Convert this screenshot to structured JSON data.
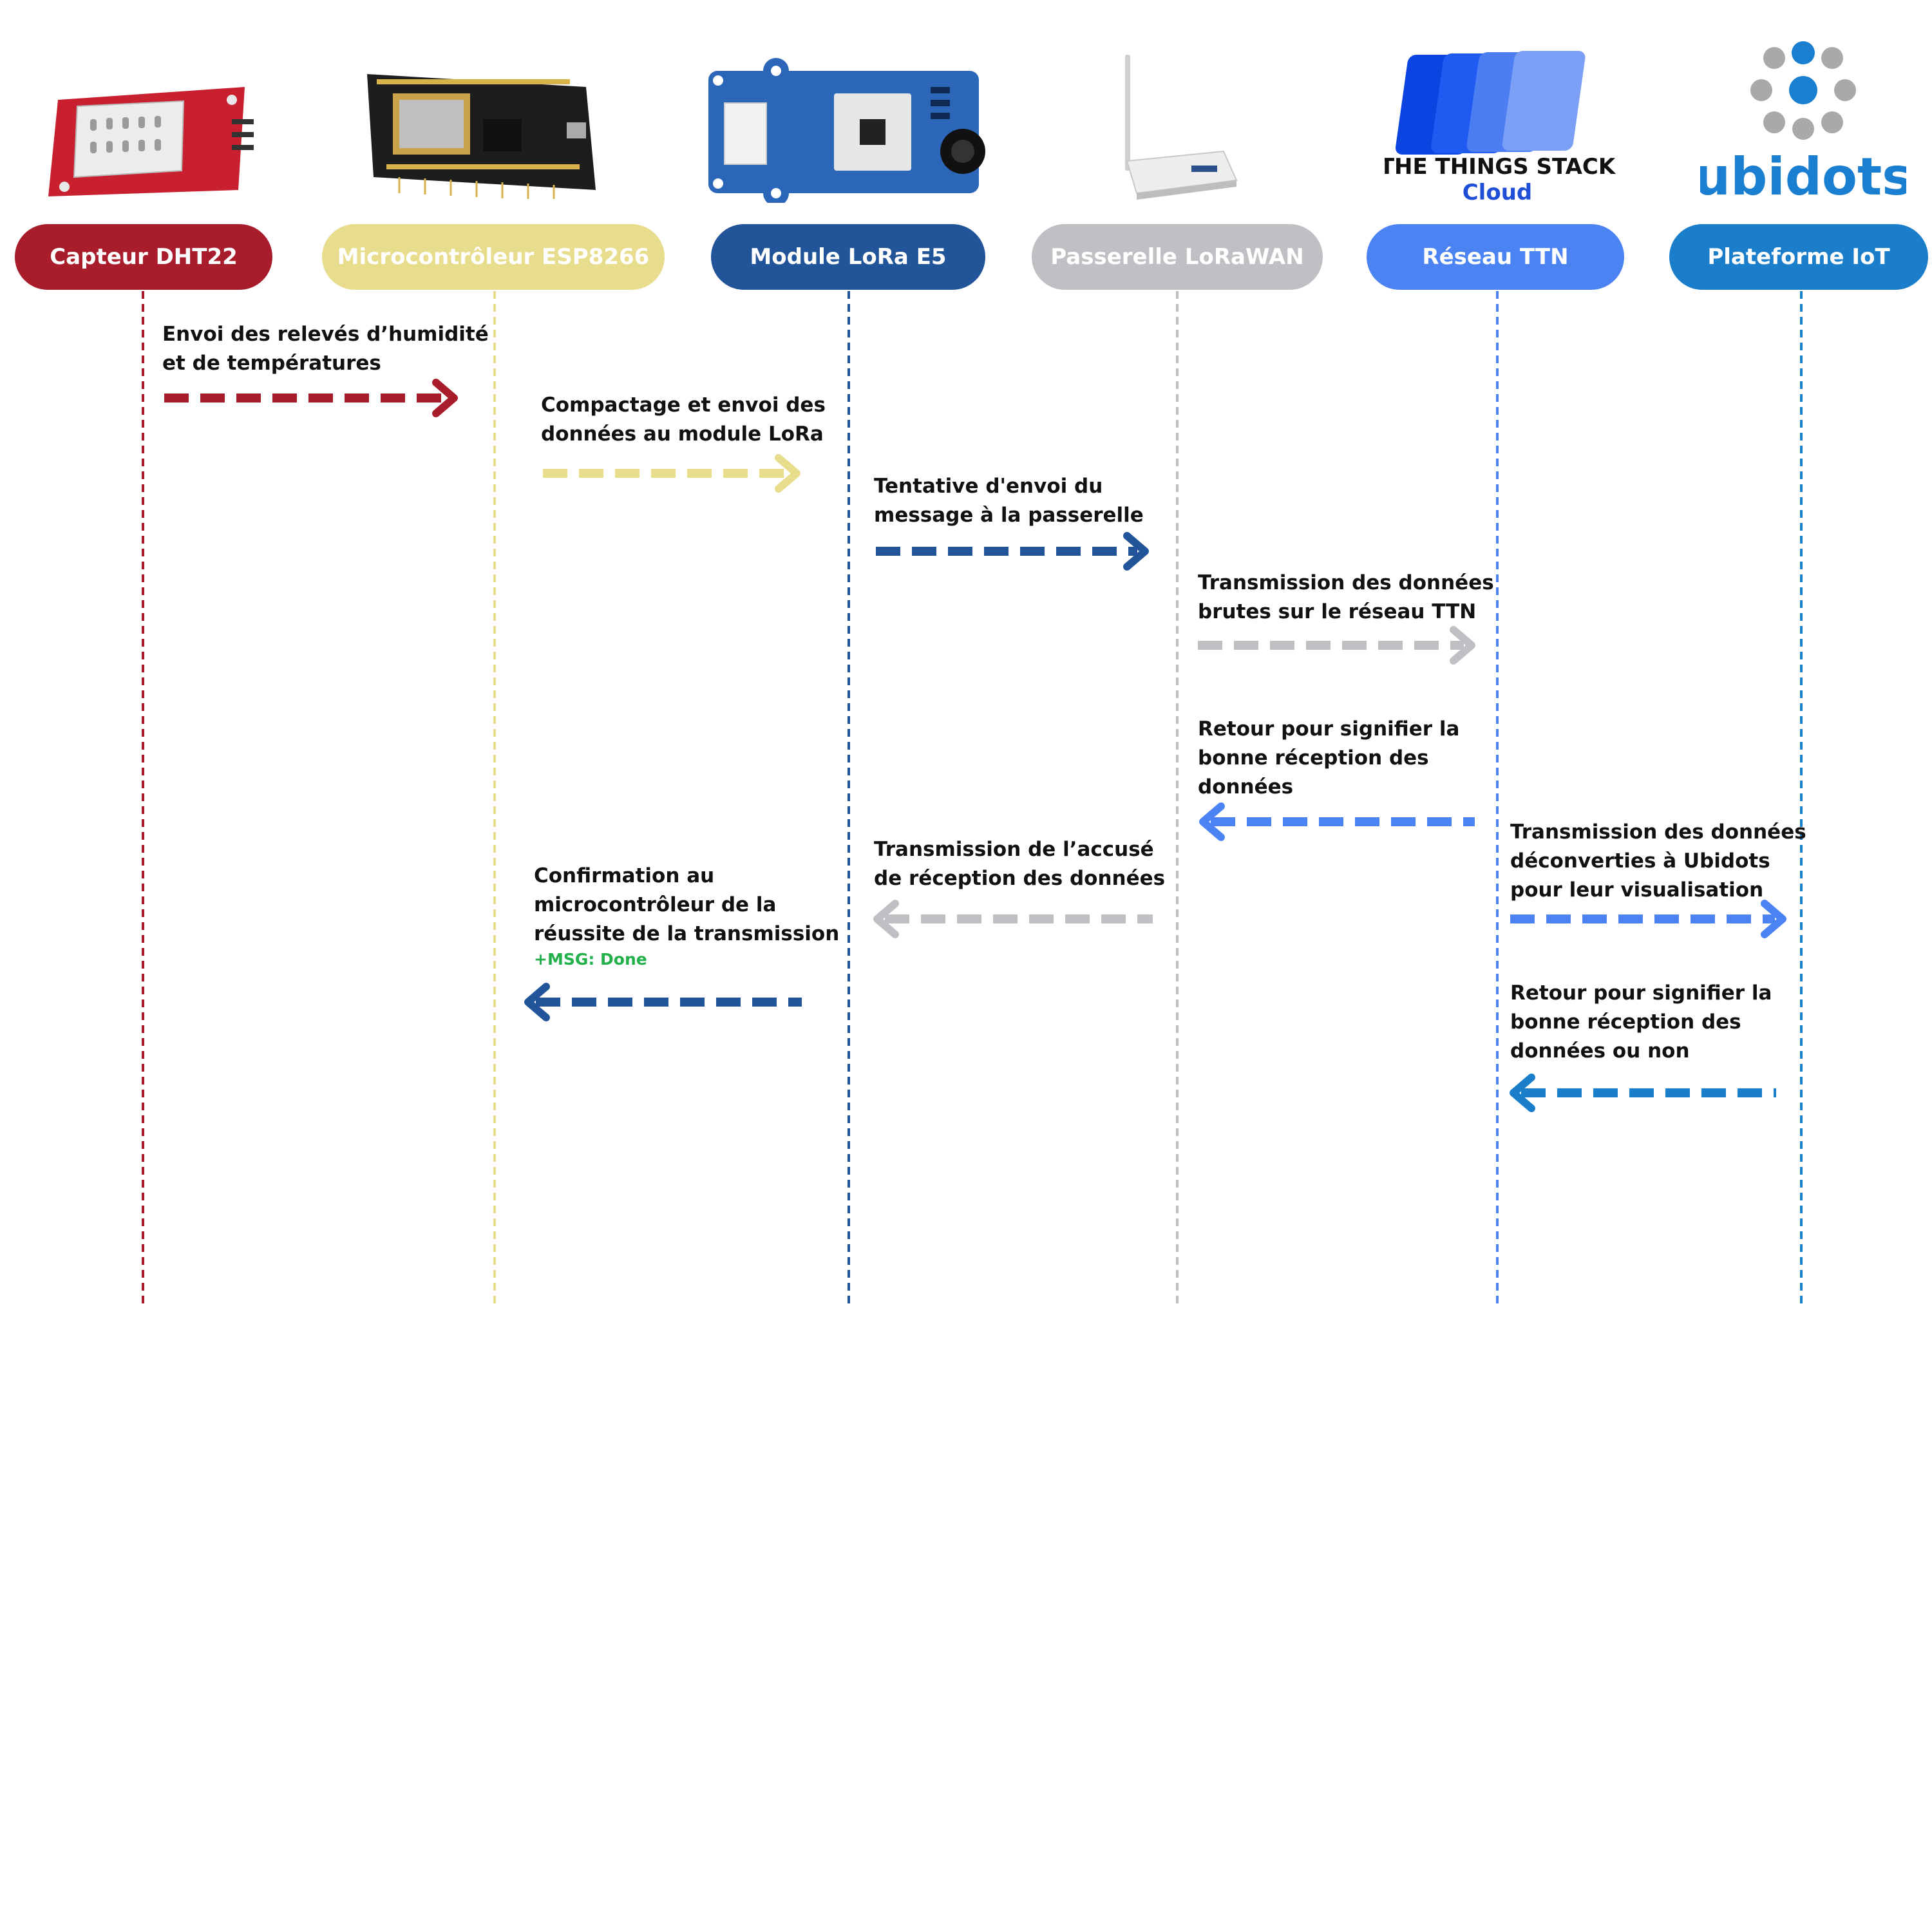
{
  "participants": [
    {
      "id": "dht22",
      "label": "Capteur DHT22",
      "color": "#a91c2b",
      "text_color": "#ffffff",
      "icon": "dht22-sensor-board-icon"
    },
    {
      "id": "esp8266",
      "label": "Microcontrôleur ESP8266",
      "color": "#e8dc8d",
      "text_color": "#ffffff",
      "icon": "esp8266-board-icon"
    },
    {
      "id": "lora",
      "label": "Module LoRa E5",
      "color": "#22549a",
      "text_color": "#ffffff",
      "icon": "lora-e5-module-icon"
    },
    {
      "id": "gateway",
      "label": "Passerelle LoRaWAN",
      "color": "#c0bfc4",
      "text_color": "#ffffff",
      "icon": "lorawan-gateway-router-icon"
    },
    {
      "id": "ttn",
      "label": "Réseau TTN",
      "color": "#4b84f2",
      "text_color": "#ffffff",
      "icon": "the-things-stack-logo-icon"
    },
    {
      "id": "iot",
      "label": "Plateforme IoT",
      "color": "#1b7ecb",
      "text_color": "#ffffff",
      "icon": "ubidots-logo-icon"
    }
  ],
  "logos": {
    "ttn_line1": "THE THINGS STACK",
    "ttn_line2": "Cloud",
    "ubidots": "ubidots"
  },
  "messages": [
    {
      "text": "Envoi des relevés d’humidité\net de températures",
      "color": "#a91c2b",
      "direction": "right"
    },
    {
      "text": "Compactage et envoi des\ndonnées au module LoRa",
      "color": "#e8dc8d",
      "direction": "right"
    },
    {
      "text": "Tentative d'envoi du\nmessage à la passerelle",
      "color": "#22549a",
      "direction": "right"
    },
    {
      "text": "Transmission des données\nbrutes sur le réseau TTN",
      "color": "#c0bfc4",
      "direction": "right"
    },
    {
      "text": "Retour pour signifier la\nbonne réception des\ndonnées",
      "color": "#4b84f2",
      "direction": "left"
    },
    {
      "text": "Transmission des données\ndéconverties à Ubidots\npour leur visualisation",
      "color": "#4b84f2",
      "direction": "right"
    },
    {
      "text": "Transmission de l’accusé\nde réception des données",
      "color": "#c0bfc4",
      "direction": "left"
    },
    {
      "text": "Confirmation au\nmicrocontrôleur de la\nréussite de la transmission",
      "color": "#22549a",
      "direction": "left",
      "note": "+MSG: Done",
      "note_color": "#22b04b"
    },
    {
      "text": "Retour pour signifier la\nbonne réception des\ndonnées ou non",
      "color": "#1b7ecb",
      "direction": "left"
    }
  ]
}
